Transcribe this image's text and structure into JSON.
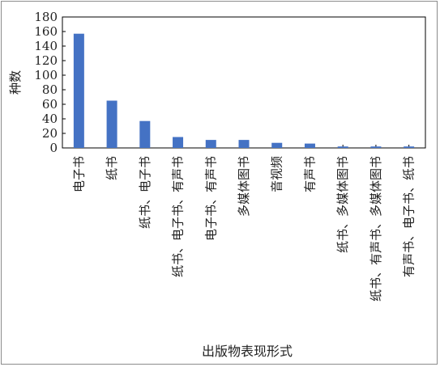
{
  "chart_data": {
    "type": "bar",
    "xlabel": "出版物表现形式",
    "ylabel": "种数",
    "ylim": [
      0,
      180
    ],
    "yticks": [
      0,
      20,
      40,
      60,
      80,
      100,
      120,
      140,
      160,
      180
    ],
    "grid": false,
    "legend": "none",
    "bar_color": "#4472c4",
    "categories": [
      "电子书",
      "纸书",
      "纸书、电子书",
      "纸书、电子书、有声书",
      "电子书、有声书",
      "多媒体图书",
      "音视频",
      "有声书",
      "纸书、多媒体图书",
      "纸书、有声书、多媒体图书",
      "有声书、电子书、纸书"
    ],
    "values": [
      157,
      65,
      37,
      15,
      11,
      11,
      7,
      6,
      2,
      2,
      2
    ]
  }
}
